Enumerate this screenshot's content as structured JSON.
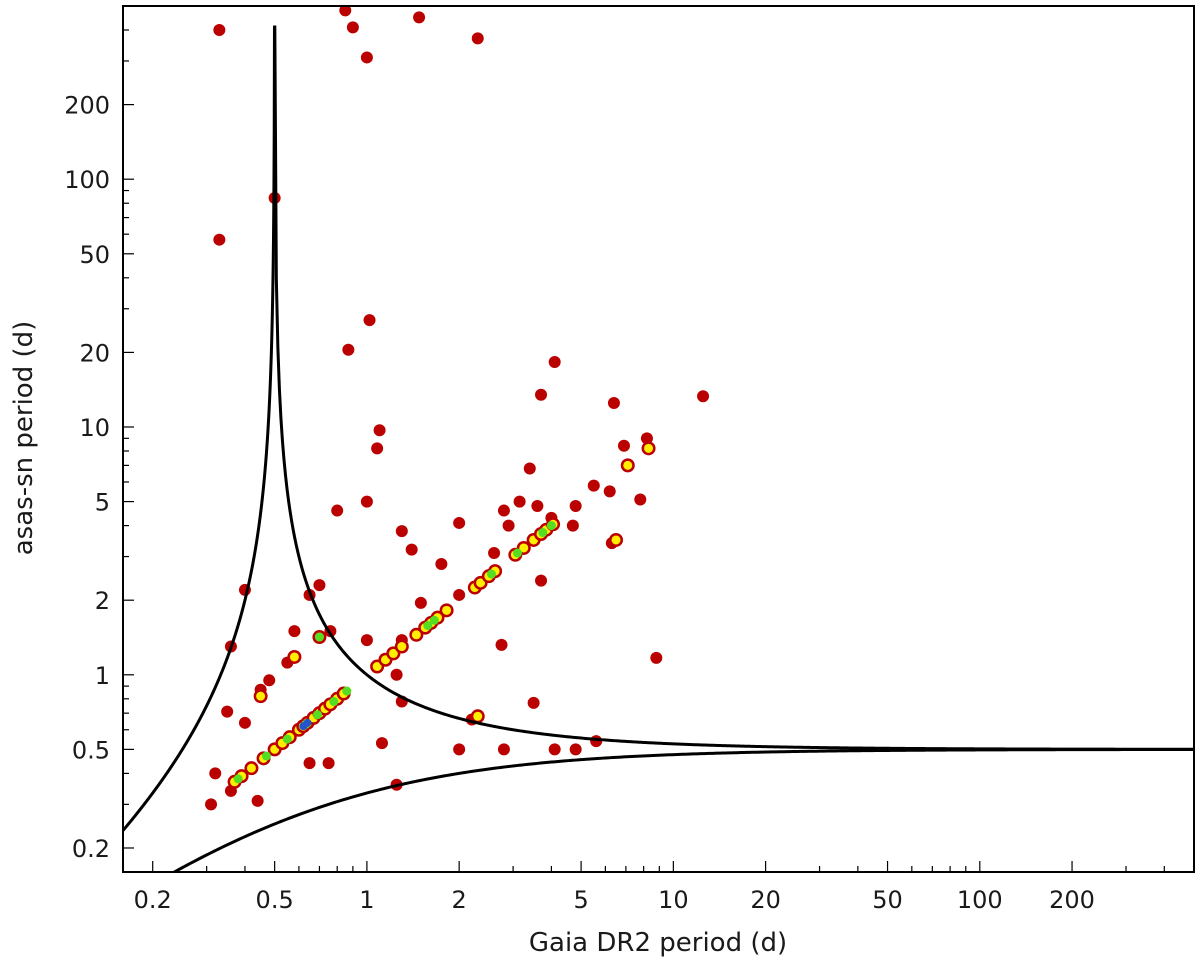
{
  "chart_data": {
    "type": "scatter",
    "title": "",
    "xlabel": "Gaia DR2 period (d)",
    "ylabel": "asas-sn period (d)",
    "xscale": "log",
    "yscale": "log",
    "xlim": [
      0.16,
      500
    ],
    "ylim": [
      0.16,
      500
    ],
    "grid": false,
    "legend": "none",
    "x_ticks": [
      0.2,
      0.5,
      1,
      2,
      5,
      10,
      20,
      50,
      100,
      200
    ],
    "x_tick_labels": [
      "0.2",
      "0.5",
      "1",
      "2",
      "5",
      "10",
      "20",
      "50",
      "100",
      "200"
    ],
    "y_ticks": [
      0.2,
      0.5,
      1,
      2,
      5,
      10,
      20,
      50,
      100,
      200
    ],
    "y_tick_labels": [
      "0.2",
      "0.5",
      "1",
      "2",
      "5",
      "10",
      "20",
      "50",
      "100",
      "200"
    ],
    "colors": {
      "outlier": "#bb0000",
      "low_density": "#ffee00",
      "mid_density": "#55dd22",
      "high_density": "#2255cc",
      "curves": "#000000"
    },
    "curves": [
      {
        "relation": "1/P_asassn = |1/P_gaia - 2|",
        "branch": "P_gaia < 0.5"
      },
      {
        "relation": "1/P_asassn = |1/P_gaia - 2|",
        "branch": "P_gaia > 0.5"
      },
      {
        "relation": "1/P_asassn = 1/P_gaia + 2"
      }
    ],
    "points": [
      [
        0.33,
        400
      ],
      [
        0.85,
        480
      ],
      [
        0.9,
        410
      ],
      [
        1.48,
        450
      ],
      [
        2.3,
        370
      ],
      [
        1.0,
        310
      ],
      [
        0.33,
        57
      ],
      [
        0.5,
        84
      ],
      [
        0.87,
        20.5
      ],
      [
        1.02,
        27
      ],
      [
        4.1,
        18.3
      ],
      [
        3.7,
        13.5
      ],
      [
        12.5,
        13.3
      ],
      [
        6.4,
        12.5
      ],
      [
        1.1,
        9.7
      ],
      [
        1.08,
        8.2
      ],
      [
        8.2,
        9.0
      ],
      [
        6.9,
        8.4
      ],
      [
        3.4,
        6.8
      ],
      [
        5.5,
        5.8
      ],
      [
        6.2,
        5.5
      ],
      [
        7.8,
        5.1
      ],
      [
        1.0,
        5.0
      ],
      [
        3.15,
        5.0
      ],
      [
        2.8,
        4.6
      ],
      [
        3.6,
        4.8
      ],
      [
        4.8,
        4.8
      ],
      [
        0.8,
        4.6
      ],
      [
        4.0,
        4.3
      ],
      [
        2.0,
        4.1
      ],
      [
        2.9,
        4.0
      ],
      [
        4.7,
        4.0
      ],
      [
        1.3,
        3.8
      ],
      [
        1.4,
        3.2
      ],
      [
        2.6,
        3.1
      ],
      [
        3.7,
        2.4
      ],
      [
        6.3,
        3.4
      ],
      [
        1.75,
        2.8
      ],
      [
        0.7,
        2.3
      ],
      [
        0.65,
        2.1
      ],
      [
        2.0,
        2.1
      ],
      [
        0.4,
        2.2
      ],
      [
        1.5,
        1.95
      ],
      [
        0.58,
        1.5
      ],
      [
        0.76,
        1.5
      ],
      [
        0.36,
        1.3
      ],
      [
        1.0,
        1.38
      ],
      [
        1.3,
        1.38
      ],
      [
        2.75,
        1.32
      ],
      [
        8.8,
        1.17
      ],
      [
        0.55,
        1.12
      ],
      [
        1.25,
        1.0
      ],
      [
        0.45,
        0.87
      ],
      [
        0.48,
        0.95
      ],
      [
        0.35,
        0.71
      ],
      [
        0.4,
        0.64
      ],
      [
        3.5,
        0.77
      ],
      [
        1.3,
        0.78
      ],
      [
        0.65,
        0.44
      ],
      [
        0.75,
        0.44
      ],
      [
        1.12,
        0.53
      ],
      [
        2.0,
        0.5
      ],
      [
        2.2,
        0.66
      ],
      [
        2.8,
        0.5
      ],
      [
        4.1,
        0.5
      ],
      [
        4.8,
        0.5
      ],
      [
        5.6,
        0.54
      ],
      [
        0.32,
        0.4
      ],
      [
        0.44,
        0.31
      ],
      [
        0.31,
        0.3
      ],
      [
        1.25,
        0.36
      ],
      [
        0.36,
        0.34
      ]
    ],
    "diagonal_points": [
      [
        0.37,
        0.37
      ],
      [
        0.39,
        0.39
      ],
      [
        0.42,
        0.42
      ],
      [
        0.46,
        0.46
      ],
      [
        0.5,
        0.5
      ],
      [
        0.53,
        0.53
      ],
      [
        0.56,
        0.56
      ],
      [
        0.6,
        0.6
      ],
      [
        0.62,
        0.62
      ],
      [
        0.64,
        0.64
      ],
      [
        0.67,
        0.67
      ],
      [
        0.7,
        0.7
      ],
      [
        0.73,
        0.73
      ],
      [
        0.76,
        0.76
      ],
      [
        0.8,
        0.8
      ],
      [
        0.84,
        0.84
      ],
      [
        1.08,
        1.08
      ],
      [
        1.15,
        1.15
      ],
      [
        1.22,
        1.22
      ],
      [
        1.3,
        1.3
      ],
      [
        1.45,
        1.45
      ],
      [
        1.55,
        1.55
      ],
      [
        1.62,
        1.62
      ],
      [
        1.7,
        1.7
      ],
      [
        1.82,
        1.82
      ],
      [
        2.25,
        2.25
      ],
      [
        2.35,
        2.35
      ],
      [
        2.5,
        2.5
      ],
      [
        2.62,
        2.62
      ],
      [
        3.05,
        3.05
      ],
      [
        3.25,
        3.25
      ],
      [
        3.5,
        3.5
      ],
      [
        3.7,
        3.7
      ],
      [
        3.85,
        3.85
      ],
      [
        4.05,
        4.05
      ],
      [
        0.7,
        1.42
      ],
      [
        0.45,
        0.82
      ],
      [
        0.58,
        1.18
      ],
      [
        2.3,
        0.68
      ],
      [
        6.5,
        3.5
      ],
      [
        7.1,
        7.0
      ],
      [
        8.3,
        8.2
      ]
    ],
    "dense_points": [
      [
        0.38,
        0.38
      ],
      [
        0.47,
        0.47
      ],
      [
        0.55,
        0.55
      ],
      [
        0.63,
        0.63
      ],
      [
        0.69,
        0.69
      ],
      [
        0.78,
        0.78
      ],
      [
        0.86,
        0.86
      ],
      [
        1.58,
        1.58
      ],
      [
        1.66,
        1.66
      ],
      [
        2.55,
        2.55
      ],
      [
        3.1,
        3.1
      ],
      [
        3.75,
        3.75
      ],
      [
        4.0,
        4.0
      ],
      [
        0.7,
        1.42
      ]
    ],
    "densest_points": [
      [
        0.62,
        0.62
      ],
      [
        0.64,
        0.64
      ]
    ]
  }
}
